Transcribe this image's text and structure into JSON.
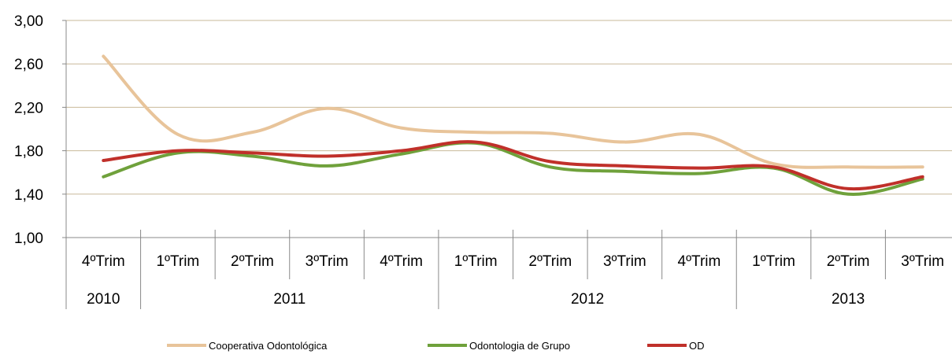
{
  "chart_data": {
    "type": "line",
    "categories": [
      "4ºTrim",
      "1ºTrim",
      "2ºTrim",
      "3ºTrim",
      "4ºTrim",
      "1ºTrim",
      "2ºTrim",
      "3ºTrim",
      "4ºTrim",
      "1ºTrim",
      "2ºTrim",
      "3ºTrim"
    ],
    "year_groups": [
      {
        "label": "2010",
        "start": 0,
        "end": 0
      },
      {
        "label": "2011",
        "start": 1,
        "end": 4
      },
      {
        "label": "2012",
        "start": 5,
        "end": 8
      },
      {
        "label": "2013",
        "start": 9,
        "end": 11
      }
    ],
    "series": [
      {
        "name": "Cooperativa Odontológica",
        "color": "#E8C49A",
        "values": [
          2.67,
          1.95,
          1.97,
          2.19,
          2.01,
          1.97,
          1.96,
          1.88,
          1.95,
          1.68,
          1.65,
          1.65
        ]
      },
      {
        "name": "Odontologia de Grupo",
        "color": "#6FA13B",
        "values": [
          1.56,
          1.78,
          1.75,
          1.66,
          1.77,
          1.87,
          1.65,
          1.61,
          1.59,
          1.64,
          1.4,
          1.54
        ]
      },
      {
        "name": "OD",
        "color": "#C0302A",
        "values": [
          1.71,
          1.8,
          1.78,
          1.75,
          1.8,
          1.88,
          1.7,
          1.66,
          1.64,
          1.65,
          1.45,
          1.56
        ]
      }
    ],
    "ylim": [
      1.0,
      3.0
    ],
    "yticks": [
      "1,00",
      "1,40",
      "1,80",
      "2,20",
      "2,60",
      "3,00"
    ],
    "grid": true,
    "legend_position": "bottom"
  }
}
